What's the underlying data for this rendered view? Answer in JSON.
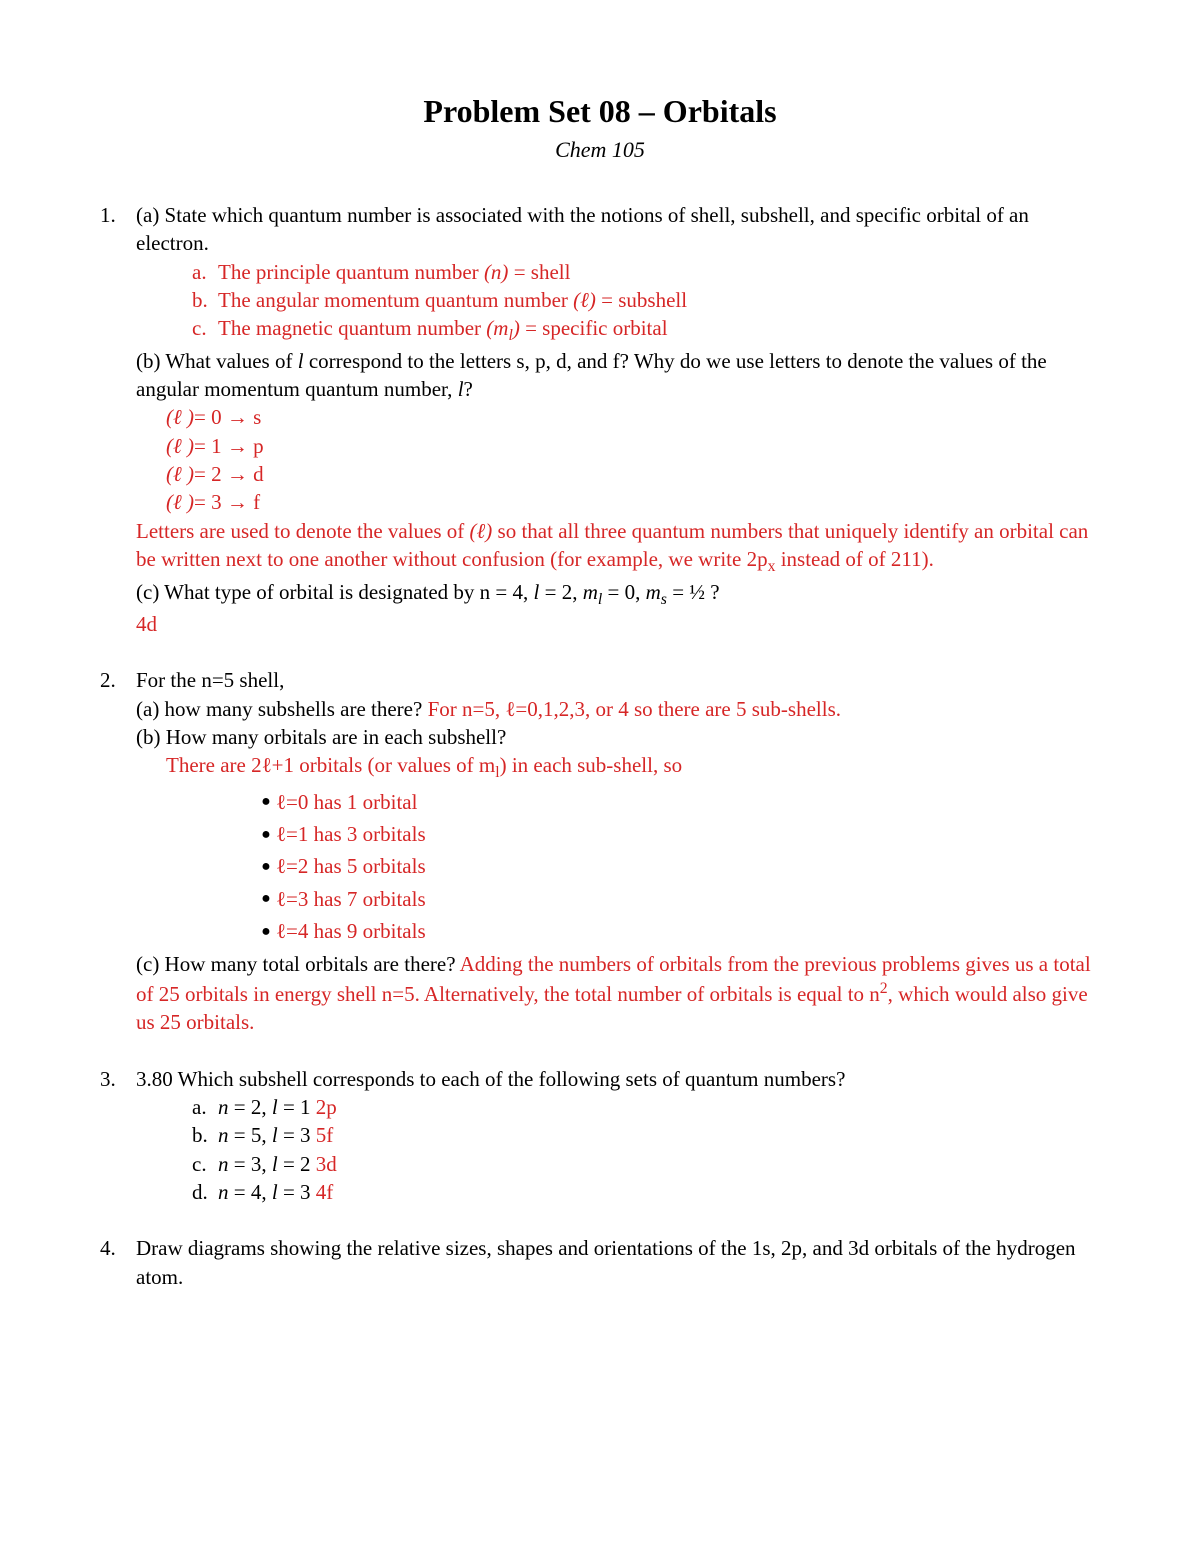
{
  "colors": {
    "answer": "#d62626",
    "text": "#000000",
    "bg": "#ffffff"
  },
  "title": "Problem Set 08 – Orbitals",
  "subtitle": "Chem 105",
  "q1": {
    "num": "1.",
    "a_text": "(a) State which quantum number is associated with the notions of shell, subshell, and specific orbital of an electron.",
    "a_ans": {
      "a_lbl": "a.",
      "a_pre": "The principle quantum number ",
      "a_sym": "(n)",
      "a_post": " = shell",
      "b_lbl": "b.",
      "b_pre": "The angular momentum quantum number ",
      "b_sym": "(ℓ)",
      "b_post": " = subshell",
      "c_lbl": "c.",
      "c_pre": "The magnetic quantum number ",
      "c_sym": "(m",
      "c_sub": "l",
      "c_sym2": ")",
      "c_post": " = specific orbital"
    },
    "b_pre": " (b) What values of ",
    "b_l": "l",
    "b_mid": " correspond to the letters s, p, d, and f? Why do we use letters to denote the values of the angular momentum quantum number, ",
    "b_l2": "l",
    "b_end": "?",
    "b_ans": {
      "r0_sym": "(ℓ )",
      "r0_eq": "= 0 ",
      "r0_arrow": "→",
      "r0_v": " s",
      "r1_sym": "(ℓ )",
      "r1_eq": "= 1 ",
      "r1_arrow": "→",
      "r1_v": " p",
      "r2_sym": "(ℓ )",
      "r2_eq": "= 2 ",
      "r2_arrow": "→",
      "r2_v": " d",
      "r3_sym": "(ℓ )",
      "r3_eq": "= 3 ",
      "r3_arrow": "→",
      "r3_v": " f"
    },
    "b_expl_pre": "Letters are used to denote the values of ",
    "b_expl_sym": "(ℓ)",
    "b_expl_mid": " so that all three quantum numbers that uniquely identify an orbital can be written next to one another without confusion (for example, we write 2p",
    "b_expl_sub": "x",
    "b_expl_post": " instead of of 211).",
    "c_pre": "(c) What type of orbital is designated by n = 4, ",
    "c_l": "l",
    "c_mid": " = 2, ",
    "c_ml": "m",
    "c_ml_sub": "l",
    "c_mid2": " = 0, ",
    "c_ms": "m",
    "c_ms_sub": "s",
    "c_end": " = ½ ?",
    "c_ans": "4d"
  },
  "q2": {
    "num": "2.",
    "intro": "For the n=5 shell,",
    "a_q": "(a) how many subshells are there? ",
    "a_ans": "For n=5, ℓ=0,1,2,3, or 4 so there are 5 sub-shells.",
    "b_q": "(b) How many orbitals are in each subshell?",
    "b_intro_pre": "There are 2ℓ+1 orbitals (or values of m",
    "b_intro_sub": "l",
    "b_intro_post": ") in each sub-shell, so",
    "bullets": {
      "r0": "ℓ=0 has 1 orbital",
      "r1": "ℓ=1 has 3 orbitals",
      "r2": "ℓ=2 has 5 orbitals",
      "r3": "ℓ=3 has 7 orbitals",
      "r4": "ℓ=4 has 9 orbitals"
    },
    "c_q": "(c) How many total orbitals are there? ",
    "c_ans_pre": "Adding the numbers of orbitals from the previous problems gives us a total of 25 orbitals in energy shell n=5. Alternatively, the total number of orbitals is equal to n",
    "c_ans_sup": "2",
    "c_ans_post": ", which would also give us 25 orbitals."
  },
  "q3": {
    "num": "3.",
    "q": "3.80 Which subshell corresponds to each of the following sets of quantum numbers?",
    "items": {
      "a_lbl": "a.",
      "a_n": "n",
      "a_nv": " = 2, ",
      "a_l": "l",
      "a_lv": " = 1  ",
      "a_ans": "2p",
      "b_lbl": "b.",
      "b_n": "n",
      "b_nv": " = 5, ",
      "b_l": "l",
      "b_lv": " = 3  ",
      "b_ans": "5f",
      "c_lbl": "c.",
      "c_n": "n",
      "c_nv": " = 3, ",
      "c_l": "l",
      "c_lv": " = 2  ",
      "c_ans": "3d",
      "d_lbl": "d.",
      "d_n": "n",
      "d_nv": " = 4, ",
      "d_l": "l",
      "d_lv": " = 3  ",
      "d_ans": "4f"
    }
  },
  "q4": {
    "num": "4.",
    "q": "Draw diagrams showing the relative sizes, shapes and orientations of the 1s, 2p, and 3d orbitals of the hydrogen atom."
  }
}
